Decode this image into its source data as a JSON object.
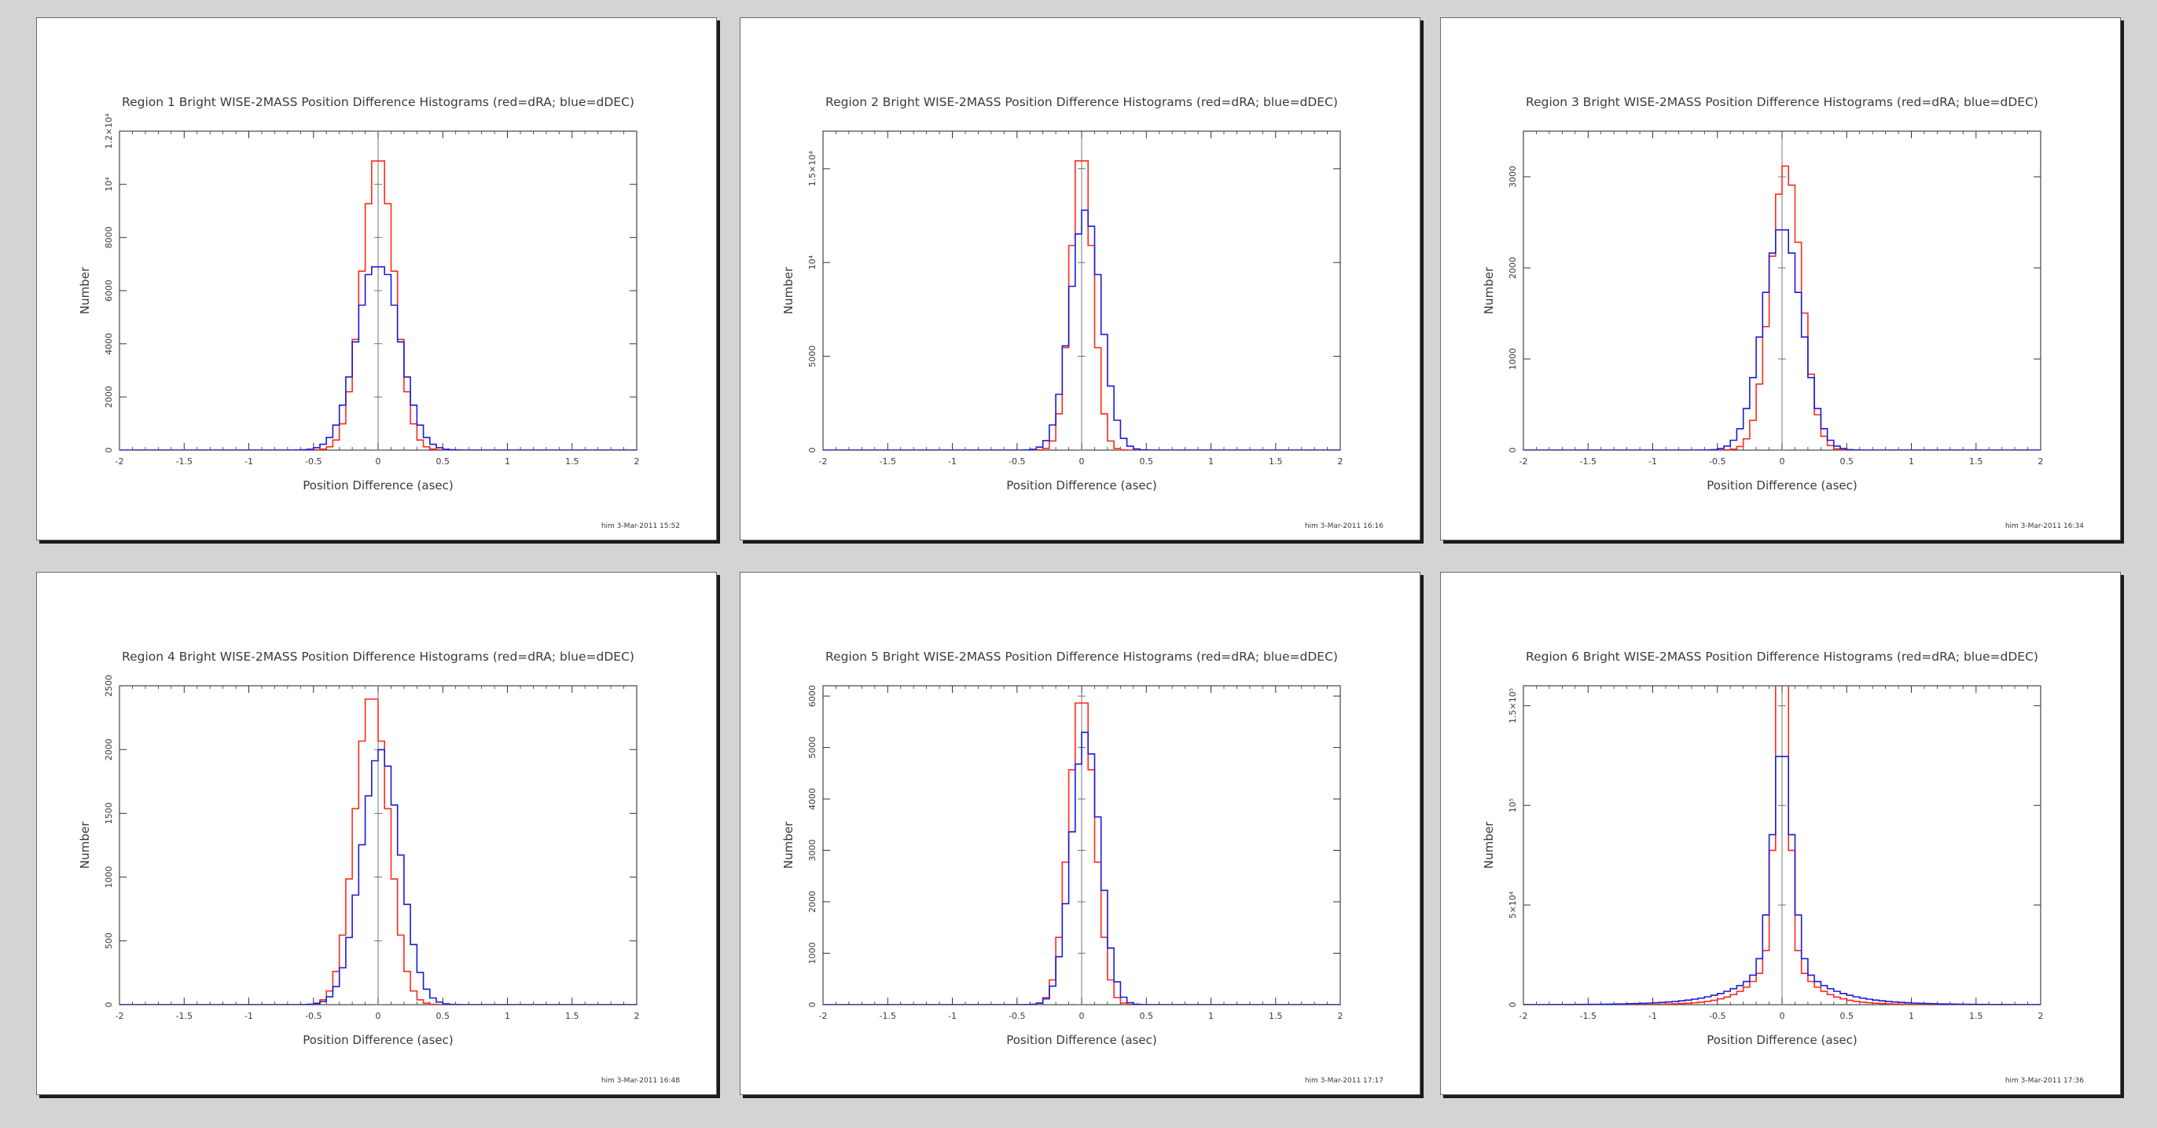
{
  "colors": {
    "dRA": "#ff2a1a",
    "dDEC": "#1a1adc",
    "frame": "#333333",
    "background": "#d4d4d4"
  },
  "chart_data": [
    {
      "type": "histogram",
      "title": "Region 1 Bright WISE-2MASS Position Difference Histograms (red=dRA; blue=dDEC)",
      "xlabel": "Position Difference (asec)",
      "ylabel": "Number",
      "xlim": [
        -2,
        2
      ],
      "ylim": [
        0,
        12000
      ],
      "x_ticks": [
        "-2",
        "-1.5",
        "-1",
        "-0.5",
        "0",
        "0.5",
        "1",
        "1.5",
        "2"
      ],
      "y_ticks": [
        {
          "value": 0,
          "label": "0"
        },
        {
          "value": 2000,
          "label": "2000"
        },
        {
          "value": 4000,
          "label": "4000"
        },
        {
          "value": 6000,
          "label": "6000"
        },
        {
          "value": 8000,
          "label": "8000"
        },
        {
          "value": 10000,
          "label": "10⁴"
        },
        {
          "value": 12000,
          "label": "1.2×10⁴"
        }
      ],
      "footer": "him  3-Mar-2011 15:52",
      "series": [
        {
          "name": "dRA",
          "color": "#ff2a1a",
          "sigma": 0.125,
          "peak": 11100,
          "center": 0.0
        },
        {
          "name": "dDEC",
          "color": "#1a1adc",
          "sigma": 0.16,
          "peak": 7400,
          "center": 0.0,
          "dip": 0.08
        }
      ]
    },
    {
      "type": "histogram",
      "title": "Region 2 Bright WISE-2MASS Position Difference Histograms (red=dRA; blue=dDEC)",
      "xlabel": "Position Difference (asec)",
      "ylabel": "Number",
      "xlim": [
        -2,
        2
      ],
      "ylim": [
        0,
        17000
      ],
      "x_ticks": [
        "-2",
        "-1.5",
        "-1",
        "-0.5",
        "0",
        "0.5",
        "1",
        "1.5",
        "2"
      ],
      "y_ticks": [
        {
          "value": 0,
          "label": "0"
        },
        {
          "value": 5000,
          "label": "5000"
        },
        {
          "value": 10000,
          "label": "10⁴"
        },
        {
          "value": 15000,
          "label": "1.5×10⁴"
        }
      ],
      "footer": "him  3-Mar-2011 16:16",
      "series": [
        {
          "name": "dRA",
          "color": "#ff2a1a",
          "sigma": 0.085,
          "peak": 16100,
          "center": 0.0
        },
        {
          "name": "dDEC",
          "color": "#1a1adc",
          "sigma": 0.12,
          "peak": 12800,
          "center": 0.03
        }
      ]
    },
    {
      "type": "histogram",
      "title": "Region 3 Bright WISE-2MASS Position Difference Histograms (red=dRA; blue=dDEC)",
      "xlabel": "Position Difference (asec)",
      "ylabel": "Number",
      "xlim": [
        -2,
        2
      ],
      "ylim": [
        0,
        3500
      ],
      "x_ticks": [
        "-2",
        "-1.5",
        "-1",
        "-0.5",
        "0",
        "0.5",
        "1",
        "1.5",
        "2"
      ],
      "y_ticks": [
        {
          "value": 0,
          "label": "0"
        },
        {
          "value": 1000,
          "label": "1000"
        },
        {
          "value": 2000,
          "label": "2000"
        },
        {
          "value": 3000,
          "label": "3000"
        }
      ],
      "footer": "him  3-Mar-2011 16:34",
      "series": [
        {
          "name": "dRA",
          "color": "#ff2a1a",
          "sigma": 0.12,
          "peak": 3120,
          "center": 0.03
        },
        {
          "name": "dDEC",
          "color": "#1a1adc",
          "sigma": 0.15,
          "peak": 2450,
          "center": 0.0
        }
      ]
    },
    {
      "type": "histogram",
      "title": "Region 4 Bright WISE-2MASS Position Difference Histograms (red=dRA; blue=dDEC)",
      "xlabel": "Position Difference (asec)",
      "ylabel": "Number",
      "xlim": [
        -2,
        2
      ],
      "ylim": [
        0,
        2500
      ],
      "x_ticks": [
        "-2",
        "-1.5",
        "-1",
        "-0.5",
        "0",
        "0.5",
        "1",
        "1.5",
        "2"
      ],
      "y_ticks": [
        {
          "value": 0,
          "label": "0"
        },
        {
          "value": 500,
          "label": "500"
        },
        {
          "value": 1000,
          "label": "1000"
        },
        {
          "value": 1500,
          "label": "1500"
        },
        {
          "value": 2000,
          "label": "2000"
        },
        {
          "value": 2500,
          "label": "2500"
        }
      ],
      "footer": "him  3-Mar-2011 16:48",
      "series": [
        {
          "name": "dRA",
          "color": "#ff2a1a",
          "sigma": 0.13,
          "peak": 2440,
          "center": -0.05
        },
        {
          "name": "dDEC",
          "color": "#1a1adc",
          "sigma": 0.15,
          "peak": 2000,
          "center": 0.02
        }
      ]
    },
    {
      "type": "histogram",
      "title": "Region 5 Bright WISE-2MASS Position Difference Histograms (red=dRA; blue=dDEC)",
      "xlabel": "Position Difference (asec)",
      "ylabel": "Number",
      "xlim": [
        -2,
        2
      ],
      "ylim": [
        0,
        6200
      ],
      "x_ticks": [
        "-2",
        "-1.5",
        "-1",
        "-0.5",
        "0",
        "0.5",
        "1",
        "1.5",
        "2"
      ],
      "y_ticks": [
        {
          "value": 0,
          "label": "0"
        },
        {
          "value": 1000,
          "label": "1000"
        },
        {
          "value": 2000,
          "label": "2000"
        },
        {
          "value": 3000,
          "label": "3000"
        },
        {
          "value": 4000,
          "label": "4000"
        },
        {
          "value": 5000,
          "label": "5000"
        },
        {
          "value": 6000,
          "label": "6000"
        }
      ],
      "footer": "him  3-Mar-2011 17:17",
      "series": [
        {
          "name": "dRA",
          "color": "#ff2a1a",
          "sigma": 0.1,
          "peak": 6050,
          "center": 0.0
        },
        {
          "name": "dDEC",
          "color": "#1a1adc",
          "sigma": 0.11,
          "peak": 5300,
          "center": 0.03
        }
      ]
    },
    {
      "type": "histogram",
      "title": "Region 6 Bright WISE-2MASS Position Difference Histograms (red=dRA; blue=dDEC)",
      "xlabel": "Position Difference (asec)",
      "ylabel": "Number",
      "xlim": [
        -2,
        2
      ],
      "ylim": [
        0,
        160000
      ],
      "x_ticks": [
        "-2",
        "-1.5",
        "-1",
        "-0.5",
        "0",
        "0.5",
        "1",
        "1.5",
        "2"
      ],
      "y_ticks": [
        {
          "value": 0,
          "label": "0"
        },
        {
          "value": 50000,
          "label": "5×10⁴"
        },
        {
          "value": 100000,
          "label": "10⁵"
        },
        {
          "value": 150000,
          "label": "1.5×10⁵"
        }
      ],
      "footer": "him  3-Mar-2011 17:36",
      "series": [
        {
          "name": "dRA",
          "color": "#ff2a1a",
          "sigma": 0.05,
          "peak": 156000,
          "center": 0.0,
          "halo": 0.26,
          "haloWidth": 0.18
        },
        {
          "name": "dDEC",
          "color": "#1a1adc",
          "sigma": 0.075,
          "peak": 102000,
          "center": 0.0,
          "halo": 0.3,
          "haloWidth": 0.28
        }
      ]
    }
  ]
}
